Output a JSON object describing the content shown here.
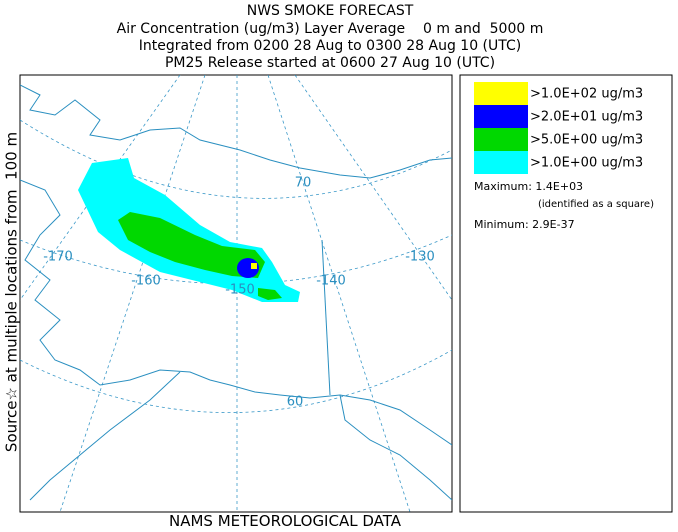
{
  "header": {
    "lines": [
      "NWS SMOKE FORECAST",
      "Air Concentration (ug/m3) Layer Average    0 m and  5000 m",
      "Integrated from 0200 28 Aug to 0300 28 Aug 10 (UTC)",
      "PM25 Release started at 0600 27 Aug 10 (UTC)"
    ]
  },
  "side_label": "Source☆ at multiple locations from  100 m",
  "footer": "NAMS METEOROLOGICAL DATA",
  "map": {
    "labels": [
      "-170",
      "-160",
      "-150",
      "-140",
      "-130",
      "70",
      "60"
    ]
  },
  "legend": {
    "items": [
      {
        "label": ">1.0E+02 ug/m3",
        "color": "#ffff00"
      },
      {
        "label": ">2.0E+01 ug/m3",
        "color": "#0000ff"
      },
      {
        "label": ">5.0E+00 ug/m3",
        "color": "#00d800"
      },
      {
        "label": ">1.0E+00 ug/m3",
        "color": "#00ffff"
      }
    ],
    "maximum": "Maximum: 1.4E+03",
    "maximum_note": "(identified as a square)",
    "minimum": "Minimum: 2.9E-37"
  }
}
